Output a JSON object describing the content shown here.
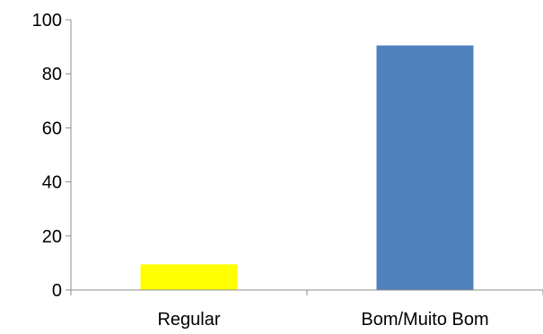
{
  "chart_data": {
    "type": "bar",
    "title": "",
    "xlabel": "",
    "ylabel": "",
    "categories": [
      "Regular",
      "Bom/Muito Bom"
    ],
    "values": [
      9.5,
      90.5
    ],
    "bar_colors": [
      "#ffff00",
      "#4f81bd"
    ],
    "ylim": [
      0,
      100
    ],
    "yticks": [
      0,
      20,
      40,
      60,
      80,
      100
    ],
    "ytick_labels": [
      "0",
      "20",
      "40",
      "60",
      "80",
      "100"
    ],
    "grid": false,
    "legend": "none"
  }
}
